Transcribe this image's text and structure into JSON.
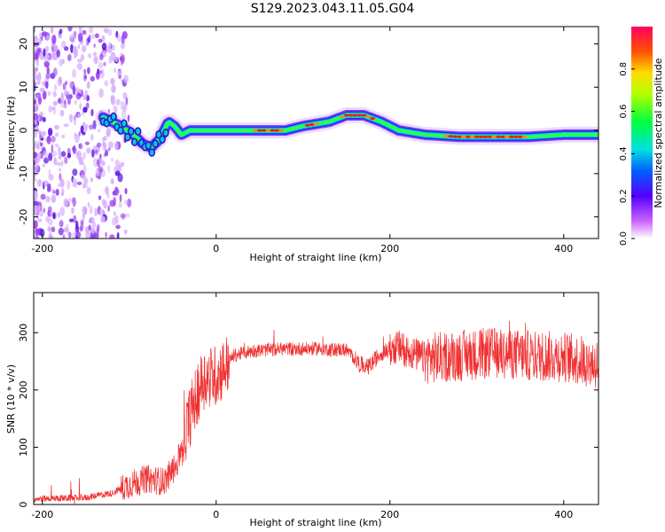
{
  "title": "S129.2023.043.11.05.G04",
  "chart_data": [
    {
      "type": "heatmap",
      "xlabel": "Height of straight line (km)",
      "ylabel": "Frequency (Hz)",
      "xlim": [
        -210,
        440
      ],
      "ylim": [
        -25,
        24
      ],
      "xticks": [
        -200,
        0,
        200,
        400
      ],
      "yticks": [
        -20,
        -10,
        0,
        10,
        20
      ],
      "ridge": {
        "x": [
          -130,
          -110,
          -95,
          -85,
          -75,
          -65,
          -55,
          -48,
          -40,
          -30,
          0,
          50,
          80,
          100,
          130,
          150,
          170,
          190,
          210,
          240,
          280,
          320,
          360,
          400,
          440
        ],
        "y": [
          3,
          1,
          -1,
          -3,
          -4,
          -2,
          2,
          1,
          -1,
          0,
          0,
          0,
          0,
          1,
          2,
          3.5,
          3.5,
          2,
          0,
          -1,
          -1.5,
          -1.5,
          -1.5,
          -1,
          -1
        ]
      },
      "colorbar": {
        "label": "Normalized spectral amplitude",
        "ticks": [
          0.0,
          0.2,
          0.4,
          0.6,
          0.8
        ],
        "range": [
          0,
          1
        ]
      }
    },
    {
      "type": "line",
      "xlabel": "Height of straight line (km)",
      "ylabel": "SNR (10 * v/v)",
      "xlim": [
        -210,
        440
      ],
      "ylim": [
        0,
        370
      ],
      "xticks": [
        -200,
        0,
        200,
        400
      ],
      "yticks": [
        0,
        100,
        200,
        300
      ],
      "series": [
        {
          "color": "#f03030",
          "points": [
            [
              -210,
              10
            ],
            [
              -150,
              12
            ],
            [
              -120,
              20
            ],
            [
              -100,
              35
            ],
            [
              -80,
              45
            ],
            [
              -60,
              40
            ],
            [
              -45,
              70
            ],
            [
              -35,
              130
            ],
            [
              -25,
              180
            ],
            [
              -15,
              220
            ],
            [
              0,
              225
            ],
            [
              10,
              240
            ],
            [
              20,
              260
            ],
            [
              40,
              268
            ],
            [
              80,
              272
            ],
            [
              120,
              272
            ],
            [
              150,
              270
            ],
            [
              165,
              245
            ],
            [
              175,
              240
            ],
            [
              190,
              265
            ],
            [
              210,
              275
            ],
            [
              240,
              255
            ],
            [
              280,
              260
            ],
            [
              320,
              265
            ],
            [
              360,
              260
            ],
            [
              400,
              258
            ],
            [
              440,
              245
            ]
          ]
        }
      ]
    }
  ]
}
